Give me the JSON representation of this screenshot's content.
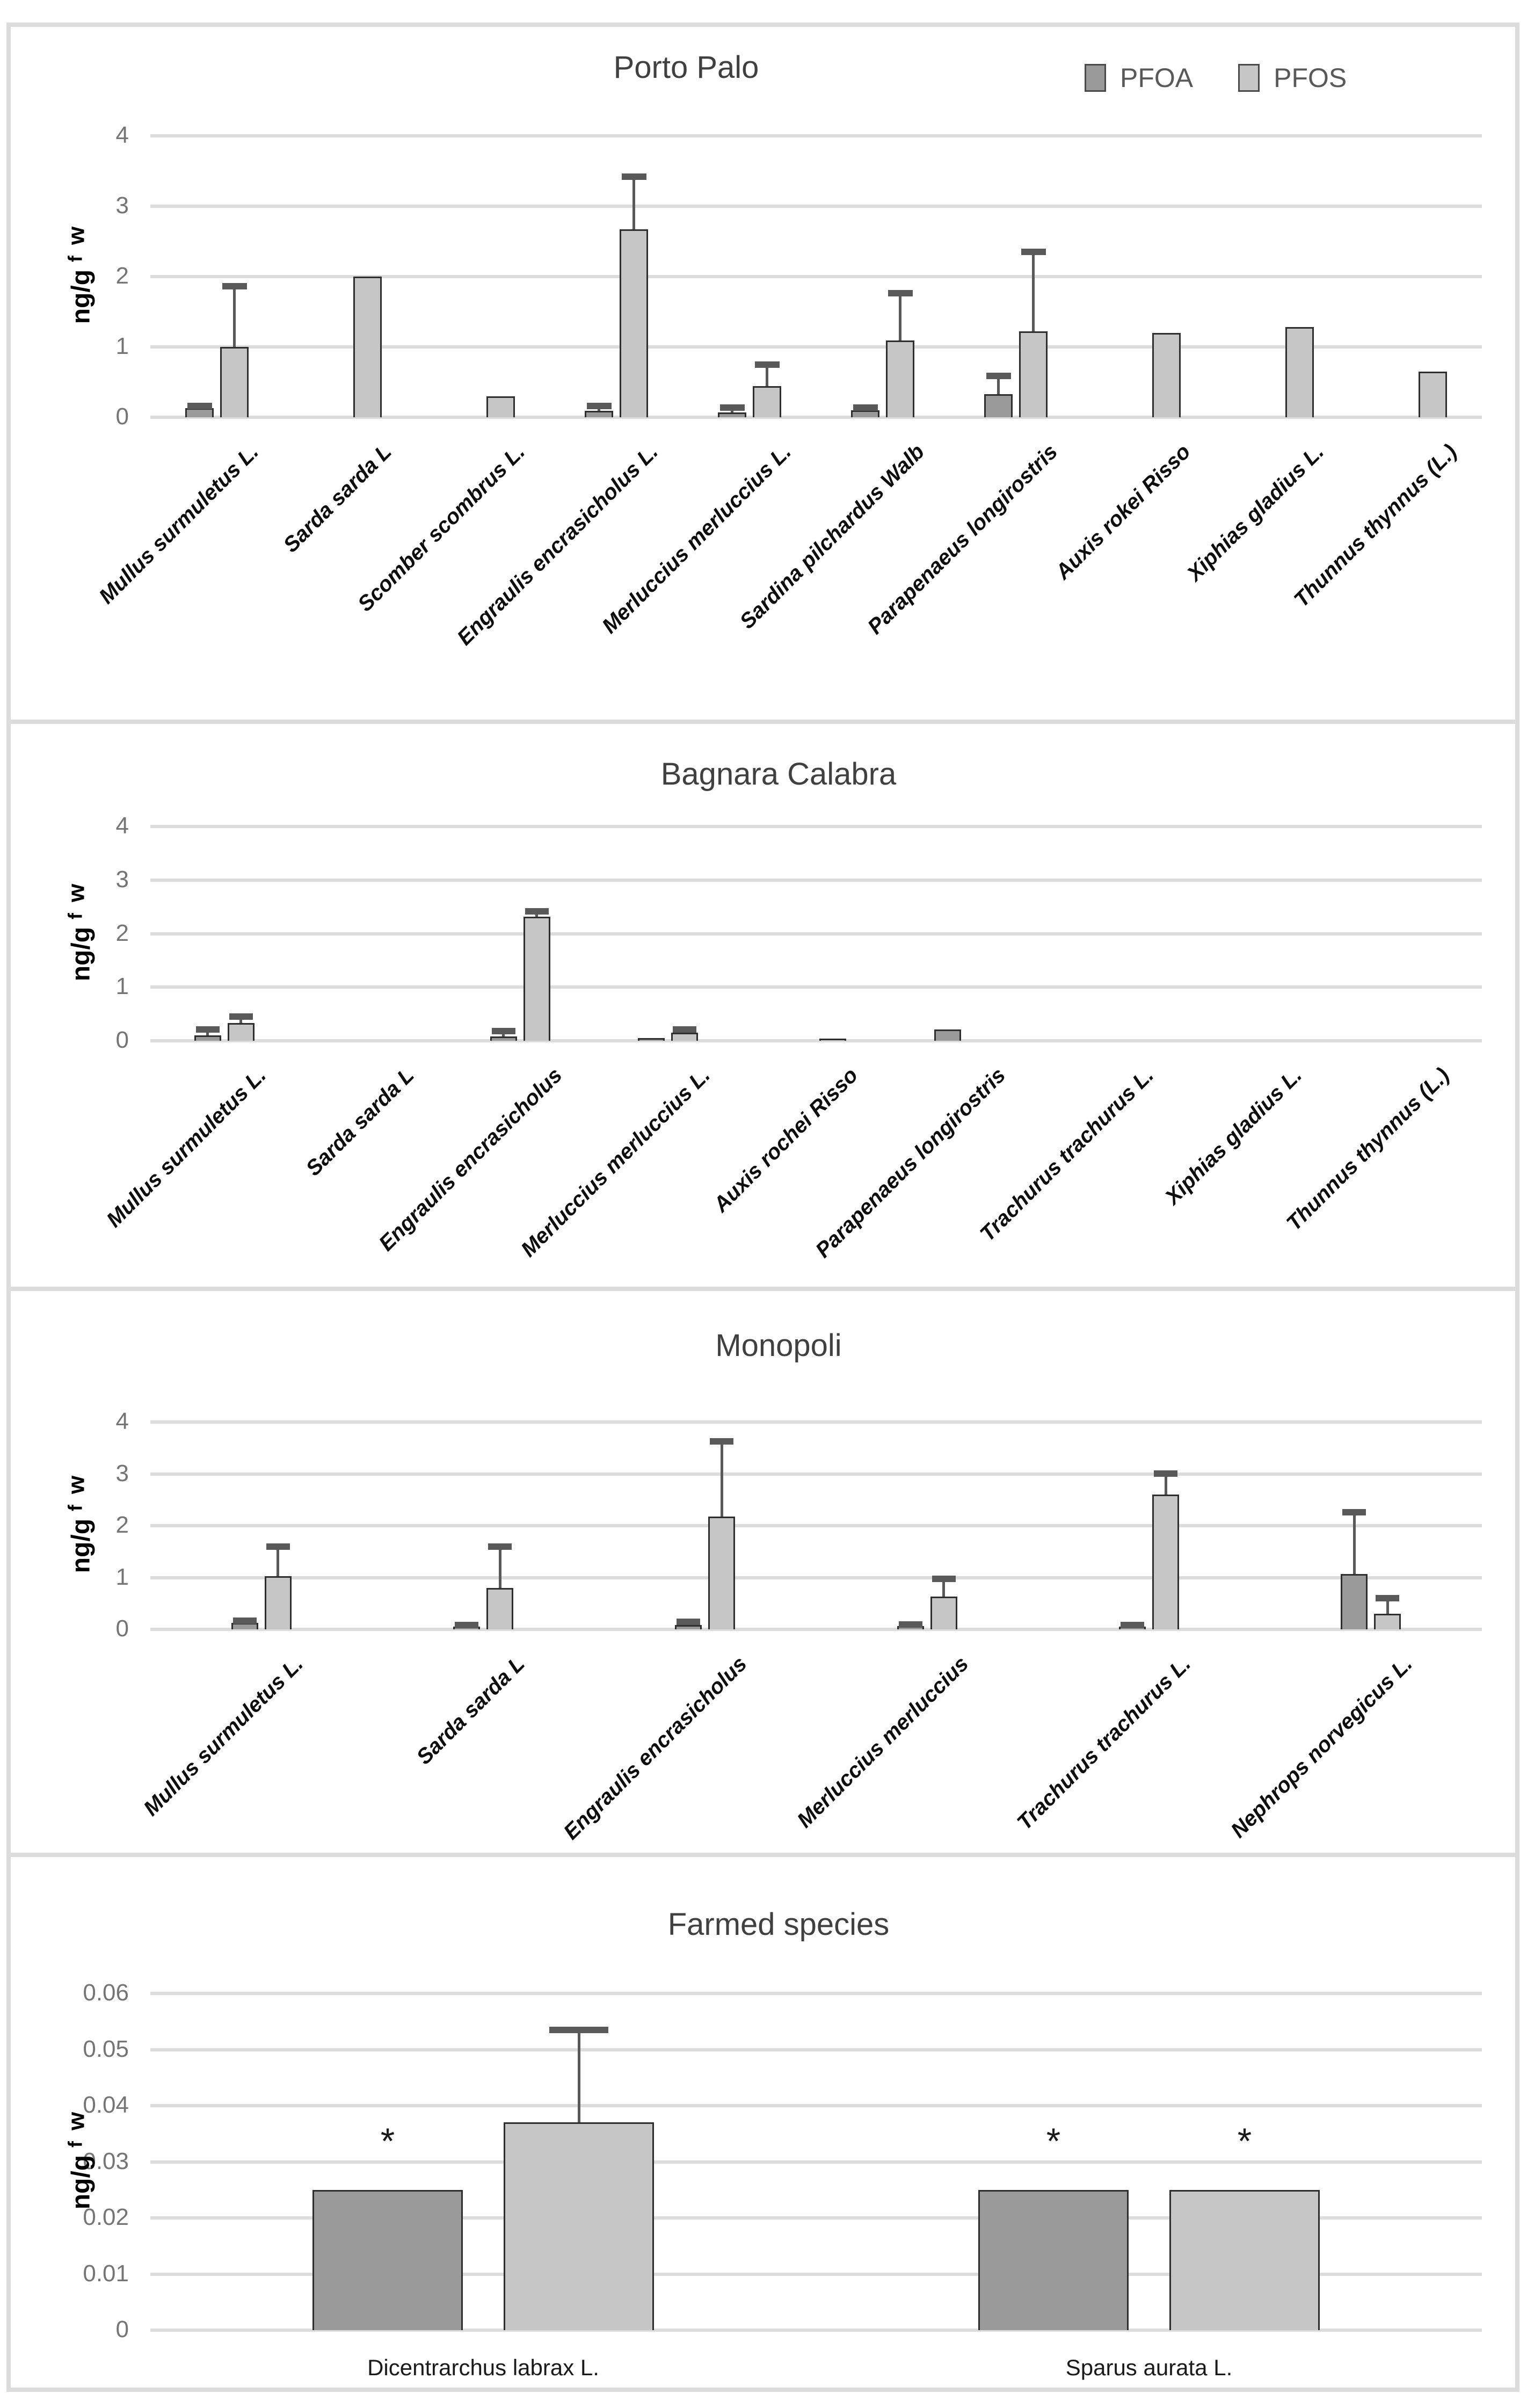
{
  "colors": {
    "pfoa": "#9a9a9a",
    "pfos": "#c6c6c6",
    "bar_border": "#2e2e2e",
    "error_bar": "#595959",
    "gridline": "#dcdcdc",
    "tick_text": "#757575",
    "title_text": "#404040",
    "panel_border": "#dcdcdc"
  },
  "legend": {
    "pfoa_label": "PFOA",
    "pfos_label": "PFOS"
  },
  "chart_data": [
    {
      "type": "bar",
      "title": "Porto Palo",
      "ylabel": "ng/g f w",
      "ylabel_parts": [
        "ng/g",
        "f",
        "w"
      ],
      "ylim": [
        0,
        4
      ],
      "yticks": [
        0,
        1,
        2,
        3,
        4
      ],
      "ytick_labels": [
        "0",
        "1",
        "2",
        "3",
        "4"
      ],
      "grid": true,
      "legend_position": "top-right",
      "legend_labels": [
        "PFOA",
        "PFOS"
      ],
      "categories": [
        "Mullus surmuletus L.",
        "Sarda sarda L",
        "Scomber scombrus L.",
        "Engraulis encrasicholus L.",
        "Merluccius merluccius L.",
        "Sardina pilchardus Walb",
        "Parapenaeus longirostris",
        "Auxis rokei Risso",
        "Xiphias gladius L.",
        "Thunnus thynnus (L.)"
      ],
      "series": [
        {
          "name": "PFOA",
          "color_key": "pfoa",
          "values": [
            0.13,
            null,
            null,
            0.09,
            0.07,
            0.1,
            0.33,
            null,
            null,
            null
          ],
          "errors": [
            0.03,
            null,
            null,
            0.07,
            0.07,
            0.04,
            0.26,
            null,
            null,
            null
          ]
        },
        {
          "name": "PFOS",
          "color_key": "pfos",
          "values": [
            1.0,
            2.0,
            0.3,
            2.67,
            0.44,
            1.09,
            1.22,
            1.2,
            1.28,
            0.65
          ],
          "errors": [
            0.86,
            null,
            null,
            0.75,
            0.31,
            0.67,
            1.13,
            null,
            null,
            null
          ]
        }
      ]
    },
    {
      "type": "bar",
      "title": "Bagnara Calabra",
      "ylabel": "ng/g f w",
      "ylabel_parts": [
        "ng/g",
        "f",
        "w"
      ],
      "ylim": [
        0,
        4
      ],
      "yticks": [
        0,
        1,
        2,
        3,
        4
      ],
      "ytick_labels": [
        "0",
        "1",
        "2",
        "3",
        "4"
      ],
      "grid": true,
      "categories": [
        "Mullus surmuletus L.",
        "Sarda sarda L",
        "Engraulis encrasicholus",
        "Merluccius merluccius L.",
        "Auxis rochei Risso",
        "Parapenaeus longirostris",
        "Trachurus trachurus L.",
        "Xiphias gladius L.",
        "Thunnus thynnus (L.)"
      ],
      "series": [
        {
          "name": "PFOA",
          "color_key": "pfoa",
          "values": [
            0.1,
            null,
            0.08,
            0.05,
            null,
            0.21,
            null,
            null,
            null
          ],
          "errors": [
            0.11,
            null,
            0.1,
            null,
            null,
            null,
            null,
            null,
            null
          ]
        },
        {
          "name": "PFOS",
          "color_key": "pfos",
          "values": [
            0.33,
            null,
            2.32,
            0.15,
            0.04,
            null,
            null,
            null,
            null
          ],
          "errors": [
            0.12,
            null,
            0.1,
            0.06,
            null,
            null,
            null,
            null,
            null
          ]
        }
      ]
    },
    {
      "type": "bar",
      "title": "Monopoli",
      "ylabel": "ng/g f w",
      "ylabel_parts": [
        "ng/g",
        "f",
        "w"
      ],
      "ylim": [
        0,
        4
      ],
      "yticks": [
        0,
        1,
        2,
        3,
        4
      ],
      "ytick_labels": [
        "0",
        "1",
        "2",
        "3",
        "4"
      ],
      "grid": true,
      "categories": [
        "Mullus surmuletus L.",
        "Sarda sarda L",
        "Engraulis encrasicholus",
        "Merluccius merluccius",
        "Trachurus trachurus L.",
        "Nephrops norvegicus L."
      ],
      "series": [
        {
          "name": "PFOA",
          "color_key": "pfoa",
          "values": [
            0.12,
            0.05,
            0.08,
            0.06,
            0.05,
            1.07
          ],
          "errors": [
            0.05,
            0.03,
            0.06,
            0.03,
            0.03,
            1.19
          ]
        },
        {
          "name": "PFOS",
          "color_key": "pfos",
          "values": [
            1.03,
            0.8,
            2.18,
            0.63,
            2.6,
            0.3
          ],
          "errors": [
            0.57,
            0.8,
            1.45,
            0.34,
            0.41,
            0.3
          ]
        }
      ]
    },
    {
      "type": "bar",
      "title": "Farmed species",
      "ylabel": "ng/g f w",
      "ylabel_parts": [
        "ng/g",
        "f",
        "w"
      ],
      "ylim": [
        0,
        0.06
      ],
      "yticks": [
        0,
        0.01,
        0.02,
        0.03,
        0.04,
        0.05,
        0.06
      ],
      "ytick_labels": [
        "0",
        "0.01",
        "0.02",
        "0.03",
        "0.04",
        "0.05",
        "0.06"
      ],
      "grid": true,
      "star_char": "*",
      "categories": [
        "Dicentrarchus labrax L.",
        "Sparus aurata L."
      ],
      "series": [
        {
          "name": "PFOA",
          "color_key": "pfoa",
          "values": [
            0.025,
            0.025
          ],
          "errors": [
            null,
            null
          ],
          "stars": [
            true,
            true
          ]
        },
        {
          "name": "PFOS",
          "color_key": "pfos",
          "values": [
            0.037,
            0.025
          ],
          "errors": [
            0.0165,
            null
          ],
          "stars": [
            false,
            true
          ]
        }
      ]
    }
  ]
}
